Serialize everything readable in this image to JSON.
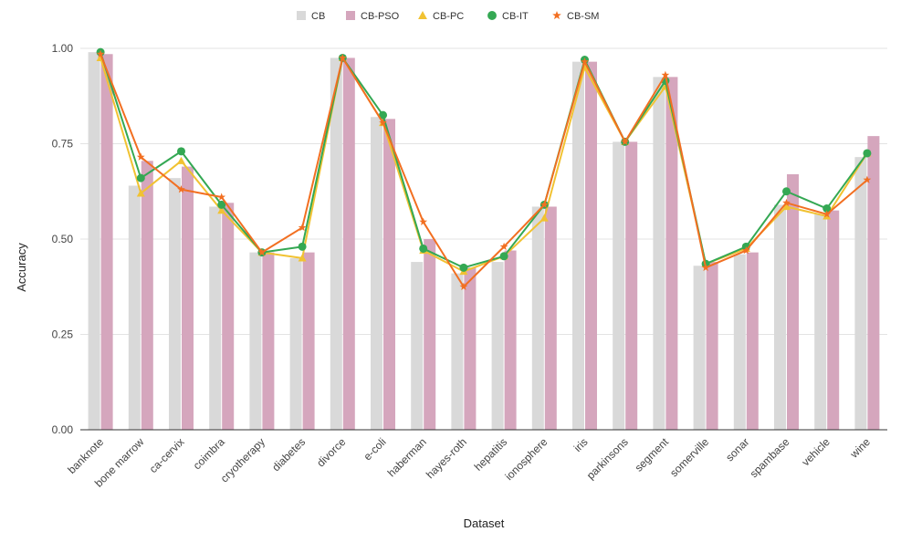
{
  "chart_data": {
    "type": "bar",
    "title": "",
    "xlabel": "Dataset",
    "ylabel": "Accuracy",
    "ylim": [
      0,
      1
    ],
    "yticks": [
      "0.00",
      "0.25",
      "0.50",
      "0.75",
      "1.00"
    ],
    "grid": true,
    "legend_position": "top-center",
    "categories": [
      "banknote",
      "bone marrow",
      "ca-cervix",
      "coimbra",
      "cryotherapy",
      "diabetes",
      "divorce",
      "e-coli",
      "haberman",
      "hayes-roth",
      "hepatitis",
      "ionosphere",
      "iris",
      "parkinsons",
      "segment",
      "somerville",
      "sonar",
      "spambase",
      "vehicle",
      "wine"
    ],
    "series": [
      {
        "name": "CB",
        "kind": "bar",
        "color": "#d9d9d9",
        "marker": "square",
        "values": [
          0.99,
          0.64,
          0.66,
          0.585,
          0.465,
          0.45,
          0.975,
          0.82,
          0.44,
          0.41,
          0.44,
          0.585,
          0.965,
          0.755,
          0.925,
          0.43,
          0.46,
          0.59,
          0.565,
          0.715
        ]
      },
      {
        "name": "CB-PSO",
        "kind": "bar",
        "color": "#d5a6bd",
        "marker": "square",
        "values": [
          0.985,
          0.705,
          0.69,
          0.595,
          0.465,
          0.465,
          0.975,
          0.815,
          0.5,
          0.425,
          0.47,
          0.585,
          0.965,
          0.755,
          0.925,
          0.44,
          0.465,
          0.67,
          0.575,
          0.77
        ]
      },
      {
        "name": "CB-PC",
        "kind": "line",
        "color": "#f1c232",
        "marker": "triangle",
        "values": [
          0.975,
          0.62,
          0.705,
          0.575,
          0.465,
          0.45,
          0.975,
          0.805,
          0.47,
          0.415,
          0.455,
          0.555,
          0.95,
          0.755,
          0.9,
          0.435,
          0.475,
          0.585,
          0.56,
          0.725
        ]
      },
      {
        "name": "CB-IT",
        "kind": "line",
        "color": "#34a853",
        "marker": "circle",
        "values": [
          0.99,
          0.66,
          0.73,
          0.59,
          0.465,
          0.48,
          0.975,
          0.825,
          0.475,
          0.425,
          0.455,
          0.59,
          0.97,
          0.755,
          0.915,
          0.435,
          0.48,
          0.625,
          0.58,
          0.725
        ]
      },
      {
        "name": "CB-SM",
        "kind": "line",
        "color": "#f26f21",
        "marker": "star",
        "values": [
          0.985,
          0.715,
          0.63,
          0.61,
          0.465,
          0.53,
          0.975,
          0.805,
          0.545,
          0.375,
          0.48,
          0.59,
          0.965,
          0.755,
          0.93,
          0.425,
          0.47,
          0.595,
          0.565,
          0.655
        ]
      }
    ]
  }
}
